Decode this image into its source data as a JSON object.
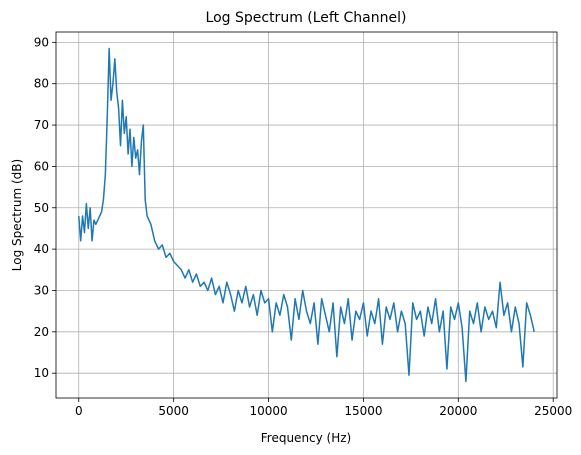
{
  "chart_data": {
    "type": "line",
    "title": "Log Spectrum (Left Channel)",
    "xlabel": "Frequency (Hz)",
    "ylabel": "Log Spectrum (dB)",
    "x": [
      0,
      100,
      200,
      300,
      400,
      500,
      600,
      700,
      800,
      900,
      1000,
      1100,
      1200,
      1300,
      1400,
      1500,
      1600,
      1700,
      1800,
      1900,
      2000,
      2100,
      2200,
      2300,
      2400,
      2500,
      2600,
      2700,
      2800,
      2900,
      3000,
      3100,
      3200,
      3300,
      3400,
      3500,
      3600,
      3800,
      4000,
      4200,
      4400,
      4600,
      4800,
      5000,
      5200,
      5400,
      5600,
      5800,
      6000,
      6200,
      6400,
      6600,
      6800,
      7000,
      7200,
      7400,
      7600,
      7800,
      8000,
      8200,
      8400,
      8600,
      8800,
      9000,
      9200,
      9400,
      9600,
      9800,
      10000,
      10200,
      10400,
      10600,
      10800,
      11000,
      11200,
      11400,
      11600,
      11800,
      12000,
      12200,
      12400,
      12600,
      12800,
      13000,
      13200,
      13400,
      13600,
      13800,
      14000,
      14200,
      14400,
      14600,
      14800,
      15000,
      15200,
      15400,
      15600,
      15800,
      16000,
      16200,
      16400,
      16600,
      16800,
      17000,
      17200,
      17400,
      17600,
      17800,
      18000,
      18200,
      18400,
      18600,
      18800,
      19000,
      19200,
      19400,
      19600,
      19800,
      20000,
      20200,
      20400,
      20600,
      20800,
      21000,
      21200,
      21400,
      21600,
      21800,
      22000,
      22200,
      22400,
      22600,
      22800,
      23000,
      23200,
      23400,
      23600,
      23800,
      24000
    ],
    "series": [
      {
        "name": "Left Channel",
        "color": "#1f77b4",
        "values": [
          48,
          42,
          48,
          44,
          51,
          45,
          50,
          42,
          47,
          46,
          47,
          48,
          49,
          52,
          58,
          72,
          88.5,
          76,
          80,
          86,
          78,
          74,
          65,
          76,
          68,
          72,
          63,
          69,
          60,
          67,
          62,
          64,
          58,
          66,
          70,
          52,
          48,
          46,
          42,
          40,
          41,
          38,
          39,
          37,
          36,
          35,
          33,
          35,
          32,
          34,
          31,
          32,
          30,
          33,
          29,
          31,
          27,
          32,
          29,
          25,
          30,
          27,
          31,
          26,
          29,
          24,
          30,
          27,
          28,
          20,
          27,
          24,
          29,
          26,
          18,
          28,
          23,
          30,
          25,
          22,
          27,
          17,
          28,
          24,
          20,
          27,
          14,
          26,
          22,
          28,
          18,
          25,
          23,
          27,
          19,
          25,
          22,
          28,
          17,
          26,
          23,
          27,
          20,
          25,
          22,
          9.5,
          27,
          23,
          25,
          19,
          26,
          22,
          28,
          20,
          25,
          11,
          26,
          23,
          27,
          21,
          8,
          25,
          22,
          27,
          20,
          26,
          23,
          25,
          21,
          32,
          24,
          27,
          20,
          26,
          22,
          11.5,
          27,
          24,
          20
        ]
      }
    ],
    "xlim": [
      -1200,
      25200
    ],
    "ylim": [
      4,
      92.5
    ],
    "xticks": [
      0,
      5000,
      10000,
      15000,
      20000,
      25000
    ],
    "yticks": [
      10,
      20,
      30,
      40,
      50,
      60,
      70,
      80,
      90
    ],
    "grid": true
  }
}
